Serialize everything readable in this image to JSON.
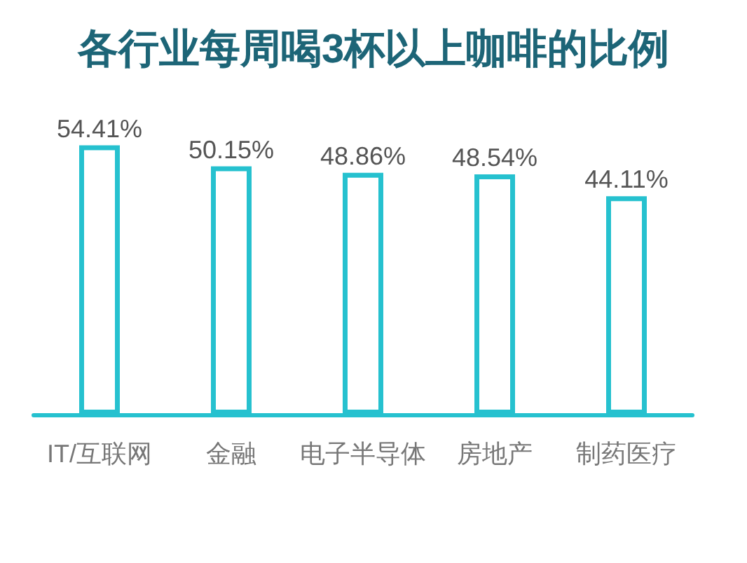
{
  "chart_data": {
    "type": "bar",
    "title": "各行业每周喝3杯以上咖啡的比例",
    "categories": [
      "IT/互联网",
      "金融",
      "电子半导体",
      "房地产",
      "制药医疗"
    ],
    "values": [
      54.41,
      50.15,
      48.86,
      48.54,
      44.11
    ],
    "value_labels": [
      "54.41%",
      "50.15%",
      "48.86%",
      "48.54%",
      "44.11%"
    ],
    "color": "#26c1cf",
    "tick_labels": "x"
  }
}
